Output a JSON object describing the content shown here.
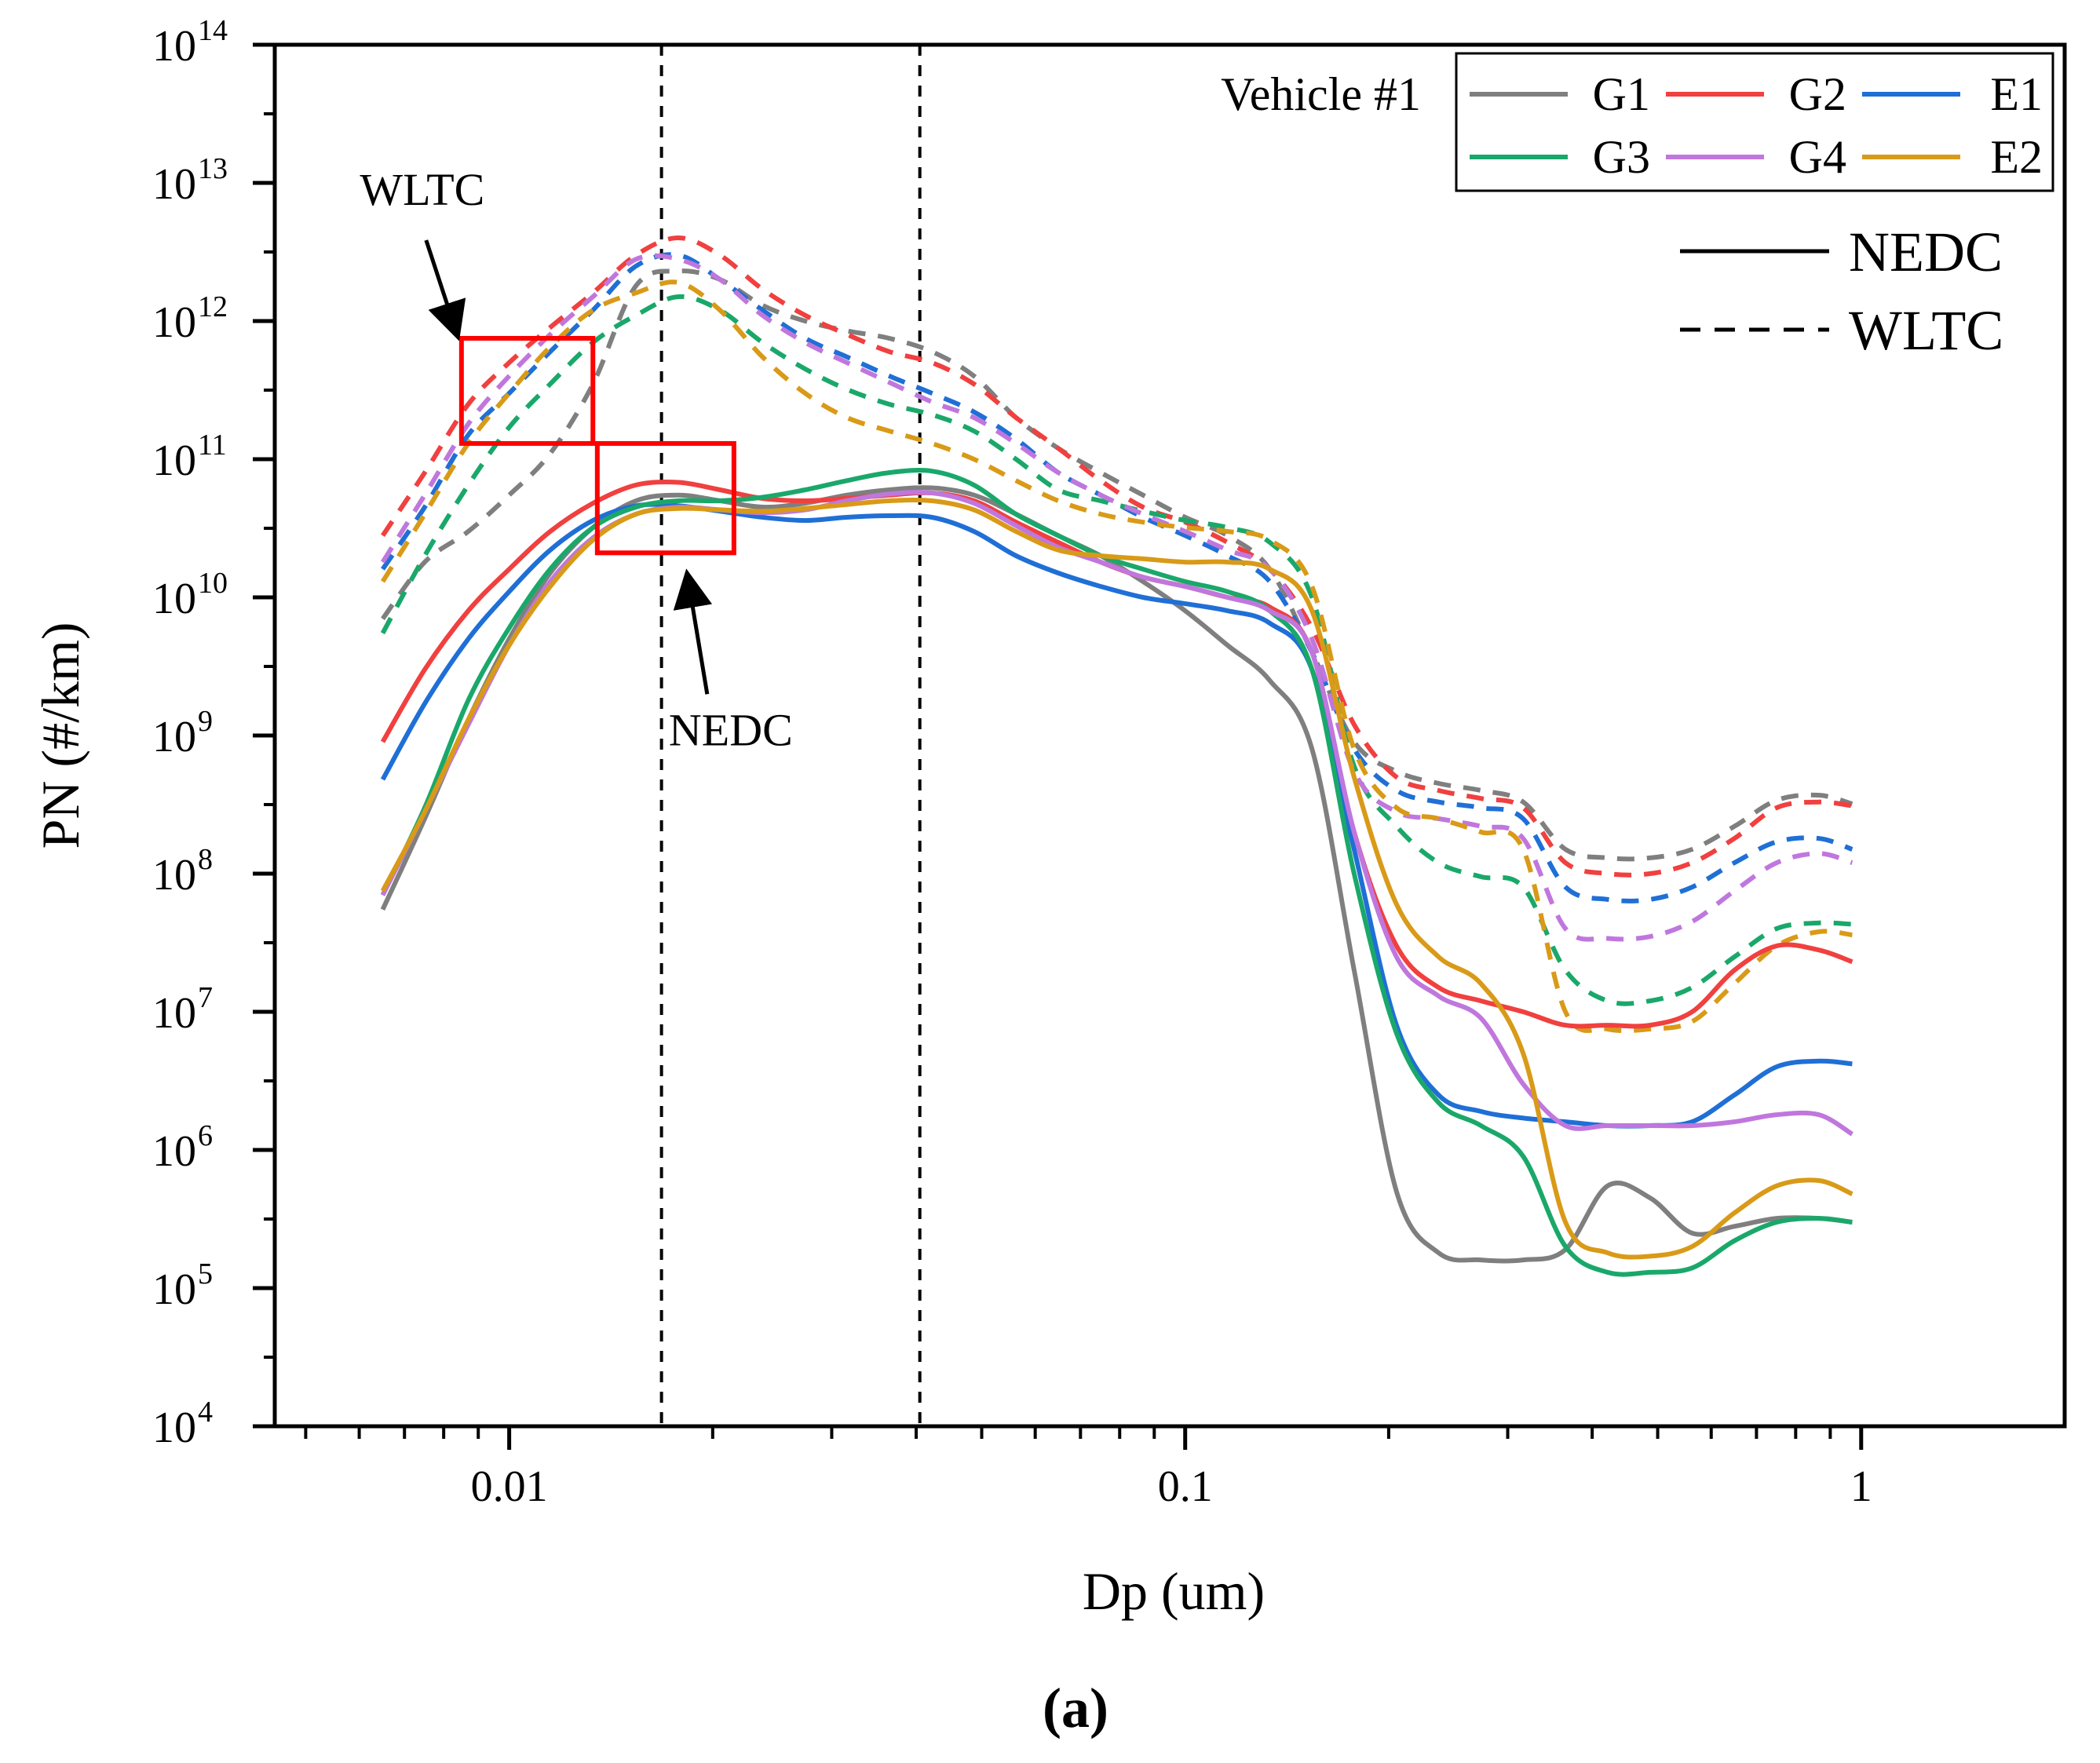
{
  "chart_data": {
    "type": "line",
    "title": "",
    "caption": "(a)",
    "xlabel": "Dp (um)",
    "ylabel": "PN (#/km)",
    "x_scale": "log",
    "y_scale": "log",
    "xlim": [
      0.0045,
      2.0
    ],
    "ylim": [
      10000,
      100000000000000
    ],
    "x_ticks": [
      {
        "value": 0.01,
        "label": "0.01"
      },
      {
        "value": 0.1,
        "label": "0.1"
      },
      {
        "value": 1,
        "label": "1"
      }
    ],
    "y_ticks": [
      {
        "value": 10000,
        "base": "10",
        "exp": "4"
      },
      {
        "value": 100000,
        "base": "10",
        "exp": "5"
      },
      {
        "value": 1000000,
        "base": "10",
        "exp": "6"
      },
      {
        "value": 10000000,
        "base": "10",
        "exp": "7"
      },
      {
        "value": 100000000,
        "base": "10",
        "exp": "8"
      },
      {
        "value": 1000000000,
        "base": "10",
        "exp": "9"
      },
      {
        "value": 10000000000,
        "base": "10",
        "exp": "10"
      },
      {
        "value": 100000000000,
        "base": "10",
        "exp": "11"
      },
      {
        "value": 1000000000000,
        "base": "10",
        "exp": "12"
      },
      {
        "value": 10000000000000,
        "base": "10",
        "exp": "13"
      },
      {
        "value": 100000000000000,
        "base": "10",
        "exp": "14"
      }
    ],
    "vehicle_label": "Vehicle #1",
    "legend": {
      "position": "top-right",
      "entries": [
        {
          "name": "G1",
          "color": "#7f7f7f"
        },
        {
          "name": "G2",
          "color": "#f0403f"
        },
        {
          "name": "E1",
          "color": "#1f6fd6"
        },
        {
          "name": "G3",
          "color": "#1aa86a"
        },
        {
          "name": "G4",
          "color": "#c077dd"
        },
        {
          "name": "E2",
          "color": "#d99a18"
        }
      ],
      "style_entries": [
        {
          "name": "NEDC",
          "dash": "solid"
        },
        {
          "name": "WLTC",
          "dash": "dashed"
        }
      ]
    },
    "reference_lines_x": [
      0.0168,
      0.0405
    ],
    "annotations": {
      "wltc_label": "WLTC",
      "nedc_label": "NEDC",
      "wltc_box": {
        "x": [
          0.0085,
          0.0133
        ],
        "y": [
          130000000000,
          750000000000
        ]
      },
      "nedc_box": {
        "x": [
          0.0135,
          0.0215
        ],
        "y": [
          21000000000,
          130000000000
        ]
      }
    },
    "x": [
      0.0065,
      0.0075,
      0.0087,
      0.01,
      0.0115,
      0.0133,
      0.0154,
      0.0178,
      0.0205,
      0.0237,
      0.0274,
      0.0316,
      0.0365,
      0.0422,
      0.0487,
      0.0562,
      0.0649,
      0.075,
      0.0866,
      0.1,
      0.1155,
      0.1334,
      0.154,
      0.1778,
      0.2054,
      0.2371,
      0.2738,
      0.3162,
      0.3652,
      0.4217,
      0.487,
      0.5623,
      0.6494,
      0.7499,
      0.866,
      0.97
    ],
    "series": [
      {
        "name": "G1",
        "cycle": "NEDC",
        "color": "#7f7f7f",
        "dash": "solid",
        "values": [
          55000000.0,
          250000000.0,
          1300000000.0,
          5000000000.0,
          15000000000.0,
          32000000000.0,
          50000000000.0,
          55000000000.0,
          50000000000.0,
          45000000000.0,
          48000000000.0,
          55000000000.0,
          60000000000.0,
          62000000000.0,
          55000000000.0,
          40000000000.0,
          28000000000.0,
          20000000000.0,
          13000000000.0,
          8000000000.0,
          4500000000.0,
          2500000000.0,
          800000000.0,
          20000000.0,
          500000.0,
          180000.0,
          160000.0,
          160000.0,
          190000.0,
          550000.0,
          450000.0,
          250000.0,
          280000.0,
          320000.0,
          320000.0,
          300000.0
        ]
      },
      {
        "name": "G2",
        "cycle": "NEDC",
        "color": "#f0403f",
        "dash": "solid",
        "values": [
          900000000.0,
          3000000000.0,
          8000000000.0,
          16000000000.0,
          30000000000.0,
          48000000000.0,
          65000000000.0,
          68000000000.0,
          60000000000.0,
          52000000000.0,
          50000000000.0,
          52000000000.0,
          55000000000.0,
          57000000000.0,
          50000000000.0,
          35000000000.0,
          25000000000.0,
          18000000000.0,
          14000000000.0,
          12000000000.0,
          10000000000.0,
          8500000000.0,
          4000000000.0,
          200000000.0,
          30000000.0,
          15000000.0,
          12000000.0,
          10000000.0,
          8000000.0,
          8000000.0,
          8000000.0,
          10000000.0,
          20000000.0,
          30000000.0,
          28000000.0,
          23000000.0
        ]
      },
      {
        "name": "E1",
        "cycle": "NEDC",
        "color": "#1f6fd6",
        "dash": "solid",
        "values": [
          480000000.0,
          1700000000.0,
          5000000000.0,
          11000000000.0,
          22000000000.0,
          36000000000.0,
          46000000000.0,
          46000000000.0,
          42000000000.0,
          38000000000.0,
          36000000000.0,
          38000000000.0,
          39000000000.0,
          38000000000.0,
          30000000000.0,
          20000000000.0,
          15000000000.0,
          12000000000.0,
          10000000000.0,
          9000000000.0,
          8000000000.0,
          6500000000.0,
          3000000000.0,
          150000000.0,
          8000000.0,
          2500000.0,
          1900000.0,
          1700000.0,
          1600000.0,
          1500000.0,
          1500000.0,
          1600000.0,
          2500000.0,
          4000000.0,
          4400000.0,
          4200000.0
        ]
      },
      {
        "name": "G3",
        "cycle": "NEDC",
        "color": "#1aa86a",
        "dash": "solid",
        "values": [
          70000000.0,
          300000000.0,
          1800000000.0,
          6000000000.0,
          16000000000.0,
          32000000000.0,
          45000000000.0,
          50000000000.0,
          50000000000.0,
          53000000000.0,
          60000000000.0,
          70000000000.0,
          80000000000.0,
          82000000000.0,
          65000000000.0,
          40000000000.0,
          28000000000.0,
          20000000000.0,
          16000000000.0,
          13000000000.0,
          11000000000.0,
          8000000000.0,
          3000000000.0,
          100000000.0,
          7000000.0,
          2200000.0,
          1500000.0,
          900000.0,
          200000.0,
          130000.0,
          130000.0,
          140000.0,
          220000.0,
          300000.0,
          320000.0,
          300000.0
        ]
      },
      {
        "name": "G4",
        "cycle": "NEDC",
        "color": "#c077dd",
        "dash": "solid",
        "values": [
          70000000.0,
          280000000.0,
          1200000000.0,
          4500000000.0,
          13000000000.0,
          27000000000.0,
          40000000000.0,
          45000000000.0,
          43000000000.0,
          41000000000.0,
          43000000000.0,
          50000000000.0,
          56000000000.0,
          57000000000.0,
          48000000000.0,
          33000000000.0,
          23000000000.0,
          18000000000.0,
          14000000000.0,
          12000000000.0,
          10000000000.0,
          8000000000.0,
          4000000000.0,
          200000000.0,
          25000000.0,
          13000000.0,
          9000000.0,
          3000000.0,
          1500000.0,
          1500000.0,
          1500000.0,
          1500000.0,
          1600000.0,
          1800000.0,
          1800000.0,
          1300000.0
        ]
      },
      {
        "name": "E2",
        "cycle": "NEDC",
        "color": "#d99a18",
        "dash": "solid",
        "values": [
          75000000.0,
          280000000.0,
          1300000000.0,
          4500000000.0,
          12000000000.0,
          26000000000.0,
          40000000000.0,
          44000000000.0,
          43000000000.0,
          42000000000.0,
          44000000000.0,
          47000000000.0,
          50000000000.0,
          50000000000.0,
          43000000000.0,
          30000000000.0,
          22000000000.0,
          20000000000.0,
          19000000000.0,
          18000000000.0,
          18000000000.0,
          16000000000.0,
          8000000000.0,
          500000000.0,
          60000000.0,
          25000000.0,
          16000000.0,
          5000000.0,
          300000.0,
          180000.0,
          170000.0,
          200000.0,
          350000.0,
          550000.0,
          600000.0,
          480000.0
        ]
      },
      {
        "name": "G1",
        "cycle": "WLTC",
        "color": "#7f7f7f",
        "dash": "dashed",
        "values": [
          7000000000.0,
          18000000000.0,
          30000000000.0,
          55000000000.0,
          110000000000.0,
          350000000000.0,
          1800000000000.0,
          2300000000000.0,
          2000000000000.0,
          1300000000000.0,
          1000000000000.0,
          850000000000.0,
          750000000000.0,
          600000000000.0,
          400000000000.0,
          200000000000.0,
          120000000000.0,
          80000000000.0,
          55000000000.0,
          38000000000.0,
          28000000000.0,
          16000000000.0,
          4000000000.0,
          900000000.0,
          550000000.0,
          450000000.0,
          400000000.0,
          330000000.0,
          150000000.0,
          130000000.0,
          130000000.0,
          150000000.0,
          220000000.0,
          340000000.0,
          370000000.0,
          320000000.0
        ]
      },
      {
        "name": "G2",
        "cycle": "WLTC",
        "color": "#f0403f",
        "dash": "dashed",
        "values": [
          28000000000.0,
          80000000000.0,
          250000000000.0,
          500000000000.0,
          900000000000.0,
          1600000000000.0,
          3000000000000.0,
          4000000000000.0,
          3000000000000.0,
          1700000000000.0,
          1100000000000.0,
          800000000000.0,
          600000000000.0,
          500000000000.0,
          350000000000.0,
          200000000000.0,
          120000000000.0,
          70000000000.0,
          45000000000.0,
          35000000000.0,
          25000000000.0,
          16000000000.0,
          6000000000.0,
          1200000000.0,
          500000000.0,
          400000000.0,
          350000000.0,
          300000000.0,
          120000000.0,
          100000000.0,
          100000000.0,
          120000000.0,
          180000000.0,
          300000000.0,
          330000000.0,
          310000000.0
        ]
      },
      {
        "name": "E1",
        "cycle": "WLTC",
        "color": "#1f6fd6",
        "dash": "dashed",
        "values": [
          16000000000.0,
          45000000000.0,
          150000000000.0,
          300000000000.0,
          600000000000.0,
          1200000000000.0,
          2500000000000.0,
          3000000000000.0,
          2000000000000.0,
          1200000000000.0,
          750000000000.0,
          550000000000.0,
          400000000000.0,
          300000000000.0,
          220000000000.0,
          140000000000.0,
          80000000000.0,
          55000000000.0,
          38000000000.0,
          28000000000.0,
          20000000000.0,
          13000000000.0,
          4000000000.0,
          800000000.0,
          400000000.0,
          330000000.0,
          300000000.0,
          250000000.0,
          80000000.0,
          65000000.0,
          65000000.0,
          80000000.0,
          120000000.0,
          170000000.0,
          180000000.0,
          150000000.0
        ]
      },
      {
        "name": "G3",
        "cycle": "WLTC",
        "color": "#1aa86a",
        "dash": "dashed",
        "values": [
          5500000000.0,
          20000000000.0,
          65000000000.0,
          170000000000.0,
          350000000000.0,
          700000000000.0,
          1100000000000.0,
          1500000000000.0,
          1200000000000.0,
          700000000000.0,
          450000000000.0,
          320000000000.0,
          250000000000.0,
          210000000000.0,
          160000000000.0,
          100000000000.0,
          60000000000.0,
          50000000000.0,
          42000000000.0,
          36000000000.0,
          32000000000.0,
          25000000000.0,
          10000000000.0,
          600000000.0,
          220000000.0,
          120000000.0,
          95000000.0,
          80000000.0,
          20000000.0,
          12000000.0,
          12000000.0,
          15000000.0,
          25000000.0,
          40000000.0,
          44000000.0,
          43000000.0
        ]
      },
      {
        "name": "G4",
        "cycle": "WLTC",
        "color": "#c077dd",
        "dash": "dashed",
        "values": [
          18000000000.0,
          55000000000.0,
          180000000000.0,
          400000000000.0,
          800000000000.0,
          1500000000000.0,
          2800000000000.0,
          2800000000000.0,
          2000000000000.0,
          1100000000000.0,
          700000000000.0,
          500000000000.0,
          360000000000.0,
          260000000000.0,
          200000000000.0,
          130000000000.0,
          80000000000.0,
          55000000000.0,
          40000000000.0,
          30000000000.0,
          22000000000.0,
          16000000000.0,
          5000000000.0,
          550000000.0,
          280000000.0,
          250000000.0,
          220000000.0,
          180000000.0,
          40000000.0,
          34000000.0,
          35000000.0,
          45000000.0,
          75000000.0,
          120000000.0,
          140000000.0,
          120000000.0
        ]
      },
      {
        "name": "E2",
        "cycle": "WLTC",
        "color": "#d99a18",
        "dash": "dashed",
        "values": [
          13000000000.0,
          40000000000.0,
          130000000000.0,
          300000000000.0,
          650000000000.0,
          1200000000000.0,
          1600000000000.0,
          1900000000000.0,
          1200000000000.0,
          550000000000.0,
          300000000000.0,
          200000000000.0,
          160000000000.0,
          130000000000.0,
          100000000000.0,
          70000000000.0,
          50000000000.0,
          40000000000.0,
          35000000000.0,
          32000000000.0,
          30000000000.0,
          26000000000.0,
          12000000000.0,
          800000000.0,
          300000000.0,
          250000000.0,
          200000000.0,
          150000000.0,
          10000000.0,
          7500000.0,
          7500000.0,
          8500000.0,
          16000000.0,
          30000000.0,
          38000000.0,
          36000000.0
        ]
      }
    ]
  }
}
